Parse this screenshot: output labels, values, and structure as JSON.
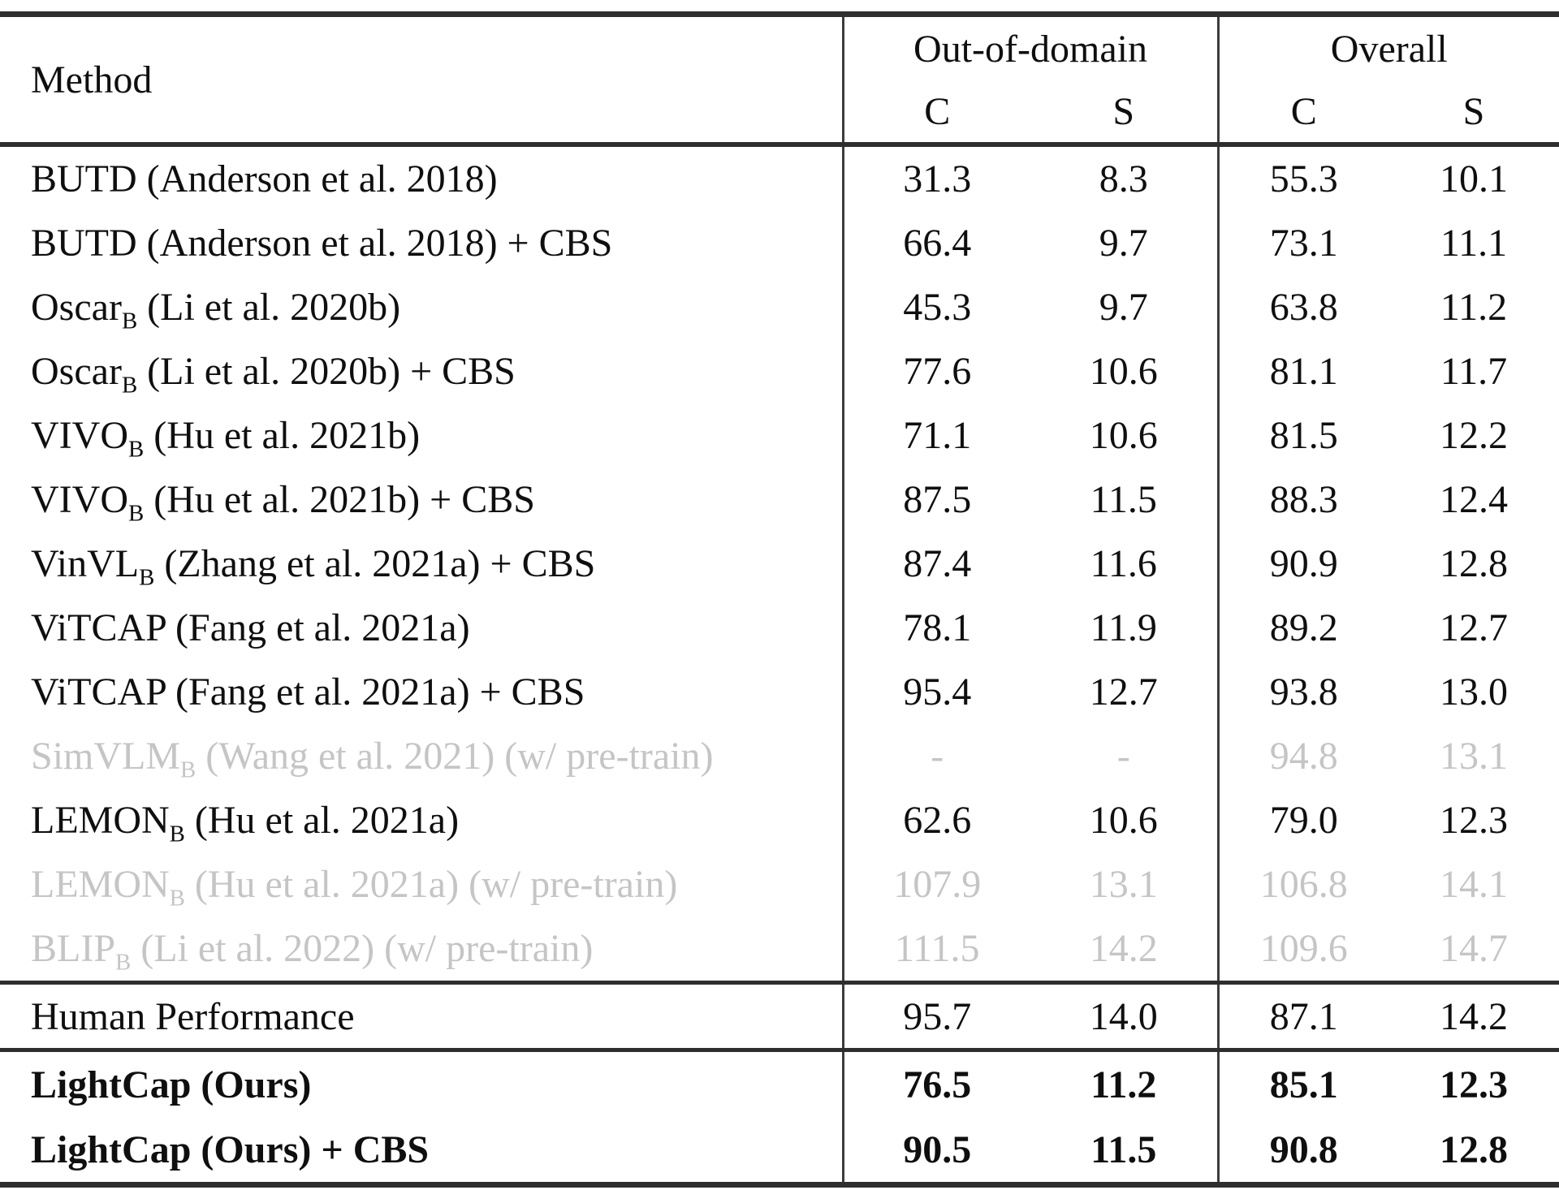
{
  "table": {
    "header": {
      "method_label": "Method",
      "groups": [
        {
          "label": "Out-of-domain",
          "cols": [
            "C",
            "S"
          ]
        },
        {
          "label": "Overall",
          "cols": [
            "C",
            "S"
          ]
        }
      ]
    },
    "rows": [
      {
        "method": {
          "pre": "BUTD",
          "sub": "",
          "post": " (Anderson et al. 2018)"
        },
        "values": [
          "31.3",
          "8.3",
          "55.3",
          "10.1"
        ],
        "muted": false,
        "bold": false,
        "rule_above": false,
        "row_kind": "body"
      },
      {
        "method": {
          "pre": "BUTD",
          "sub": "",
          "post": " (Anderson et al. 2018) + CBS"
        },
        "values": [
          "66.4",
          "9.7",
          "73.1",
          "11.1"
        ],
        "muted": false,
        "bold": false,
        "rule_above": false,
        "row_kind": "body"
      },
      {
        "method": {
          "pre": "Oscar",
          "sub": "B",
          "post": " (Li et al. 2020b)"
        },
        "values": [
          "45.3",
          "9.7",
          "63.8",
          "11.2"
        ],
        "muted": false,
        "bold": false,
        "rule_above": false,
        "row_kind": "body"
      },
      {
        "method": {
          "pre": "Oscar",
          "sub": "B",
          "post": " (Li et al. 2020b) + CBS"
        },
        "values": [
          "77.6",
          "10.6",
          "81.1",
          "11.7"
        ],
        "muted": false,
        "bold": false,
        "rule_above": false,
        "row_kind": "body"
      },
      {
        "method": {
          "pre": "VIVO",
          "sub": "B",
          "post": " (Hu et al. 2021b)"
        },
        "values": [
          "71.1",
          "10.6",
          "81.5",
          "12.2"
        ],
        "muted": false,
        "bold": false,
        "rule_above": false,
        "row_kind": "body"
      },
      {
        "method": {
          "pre": "VIVO",
          "sub": "B",
          "post": " (Hu et al. 2021b) + CBS"
        },
        "values": [
          "87.5",
          "11.5",
          "88.3",
          "12.4"
        ],
        "muted": false,
        "bold": false,
        "rule_above": false,
        "row_kind": "body"
      },
      {
        "method": {
          "pre": "VinVL",
          "sub": "B",
          "post": " (Zhang et al. 2021a) + CBS"
        },
        "values": [
          "87.4",
          "11.6",
          "90.9",
          "12.8"
        ],
        "muted": false,
        "bold": false,
        "rule_above": false,
        "row_kind": "body"
      },
      {
        "method": {
          "pre": "ViTCAP",
          "sub": "",
          "post": " (Fang et al. 2021a)"
        },
        "values": [
          "78.1",
          "11.9",
          "89.2",
          "12.7"
        ],
        "muted": false,
        "bold": false,
        "rule_above": false,
        "row_kind": "body"
      },
      {
        "method": {
          "pre": "ViTCAP",
          "sub": "",
          "post": " (Fang et al. 2021a) + CBS"
        },
        "values": [
          "95.4",
          "12.7",
          "93.8",
          "13.0"
        ],
        "muted": false,
        "bold": false,
        "rule_above": false,
        "row_kind": "body"
      },
      {
        "method": {
          "pre": "SimVLM",
          "sub": "B",
          "post": " (Wang et al. 2021) (w/ pre-train)"
        },
        "values": [
          "-",
          "-",
          "94.8",
          "13.1"
        ],
        "muted": true,
        "bold": false,
        "rule_above": false,
        "row_kind": "body"
      },
      {
        "method": {
          "pre": "LEMON",
          "sub": "B",
          "post": " (Hu et al. 2021a)"
        },
        "values": [
          "62.6",
          "10.6",
          "79.0",
          "12.3"
        ],
        "muted": false,
        "bold": false,
        "rule_above": false,
        "row_kind": "body"
      },
      {
        "method": {
          "pre": "LEMON",
          "sub": "B",
          "post": " (Hu et al. 2021a) (w/ pre-train)"
        },
        "values": [
          "107.9",
          "13.1",
          "106.8",
          "14.1"
        ],
        "muted": true,
        "bold": false,
        "rule_above": false,
        "row_kind": "body"
      },
      {
        "method": {
          "pre": "BLIP",
          "sub": "B",
          "post": " (Li et al. 2022) (w/ pre-train)"
        },
        "values": [
          "111.5",
          "14.2",
          "109.6",
          "14.7"
        ],
        "muted": true,
        "bold": false,
        "rule_above": false,
        "row_kind": "body"
      },
      {
        "method": {
          "pre": "Human Performance",
          "sub": "",
          "post": ""
        },
        "values": [
          "95.7",
          "14.0",
          "87.1",
          "14.2"
        ],
        "muted": false,
        "bold": false,
        "rule_above": true,
        "row_kind": "human"
      },
      {
        "method": {
          "pre": "LightCap (Ours)",
          "sub": "",
          "post": ""
        },
        "values": [
          "76.5",
          "11.2",
          "85.1",
          "12.3"
        ],
        "muted": false,
        "bold": true,
        "rule_above": true,
        "row_kind": "ours"
      },
      {
        "method": {
          "pre": "LightCap (Ours) + CBS",
          "sub": "",
          "post": ""
        },
        "values": [
          "90.5",
          "11.5",
          "90.8",
          "12.8"
        ],
        "muted": false,
        "bold": true,
        "rule_above": false,
        "row_kind": "ours"
      }
    ]
  },
  "colors": {
    "text": "#0f0f0f",
    "muted_text": "#c5c5c5",
    "rule": "#2e2e2e",
    "column_separator": "#3c3c3c",
    "background": "#ffffff"
  }
}
